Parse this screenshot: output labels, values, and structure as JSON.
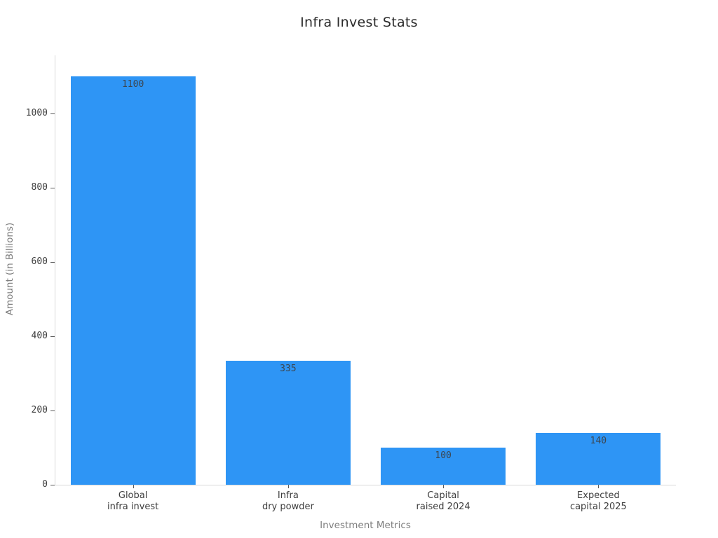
{
  "chart_data": {
    "type": "bar",
    "title": "Infra Invest Stats",
    "xlabel": "Investment Metrics",
    "ylabel": "Amount (in Billions)",
    "categories": [
      "Global infra invest",
      "Infra dry powder",
      "Capital raised 2024",
      "Expected capital 2025"
    ],
    "category_lines": [
      [
        "Global",
        "infra invest"
      ],
      [
        "Infra",
        "dry powder"
      ],
      [
        "Capital",
        "raised 2024"
      ],
      [
        "Expected",
        "capital 2025"
      ]
    ],
    "values": [
      1100,
      335,
      100,
      140
    ],
    "bar_value_labels": [
      "1100",
      "335",
      "100",
      "140"
    ],
    "yticks": [
      0,
      200,
      400,
      600,
      800,
      1000
    ],
    "ylim": [
      0,
      1157
    ],
    "grid": false,
    "legend_position": "none",
    "colors": {
      "bar_fill": "#2e95f5",
      "bar_value_label": "#3c4650",
      "title_text": "#2b2b2b",
      "tick_label": "#3d3d3d",
      "axis_line": "#d9d9d9",
      "tick_mark": "#5a5a5a",
      "axis_title": "#7d7d7d",
      "background": "#ffffff"
    }
  }
}
